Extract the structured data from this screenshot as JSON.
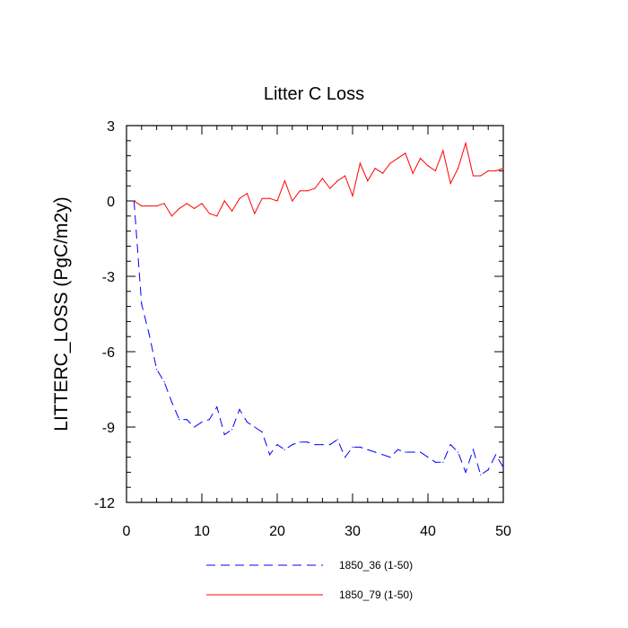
{
  "chart_data": {
    "type": "line",
    "title": "Litter C Loss",
    "xlabel": "",
    "ylabel": "LITTERC_LOSS  (PgC/m2y)",
    "xlim": [
      0,
      50
    ],
    "ylim": [
      -12,
      3
    ],
    "x_ticks": [
      0,
      10,
      20,
      30,
      40,
      50
    ],
    "y_ticks": [
      3,
      0,
      -3,
      -6,
      -9,
      -12
    ],
    "x_tick_labels": [
      "0",
      "10",
      "20",
      "30",
      "40",
      "50"
    ],
    "y_tick_labels": [
      "3",
      "0",
      "-3",
      "-6",
      "-9",
      "-12"
    ],
    "grid": false,
    "legend_position": "bottom",
    "series": [
      {
        "name": "1850_36 (1-50)",
        "color": "#0000ff",
        "style": "dashed",
        "x": [
          1,
          2,
          3,
          4,
          5,
          6,
          7,
          8,
          9,
          10,
          11,
          12,
          13,
          14,
          15,
          16,
          17,
          18,
          19,
          20,
          21,
          22,
          23,
          24,
          25,
          26,
          27,
          28,
          29,
          30,
          31,
          32,
          33,
          34,
          35,
          36,
          37,
          38,
          39,
          40,
          41,
          42,
          43,
          44,
          45,
          46,
          47,
          48,
          49,
          50
        ],
        "values": [
          0.0,
          -4.1,
          -5.3,
          -6.7,
          -7.2,
          -8.0,
          -8.7,
          -8.7,
          -9.0,
          -8.8,
          -8.7,
          -8.2,
          -9.3,
          -9.1,
          -8.3,
          -8.8,
          -9.0,
          -9.2,
          -10.1,
          -9.7,
          -9.9,
          -9.7,
          -9.6,
          -9.6,
          -9.7,
          -9.7,
          -9.7,
          -9.5,
          -10.2,
          -9.8,
          -9.8,
          -9.9,
          -10.0,
          -10.1,
          -10.2,
          -9.9,
          -10.0,
          -10.0,
          -10.0,
          -10.2,
          -10.4,
          -10.4,
          -9.7,
          -10.0,
          -10.8,
          -9.9,
          -10.9,
          -10.7,
          -10.1,
          -10.6
        ]
      },
      {
        "name": "1850_79 (1-50)",
        "color": "#ff0000",
        "style": "solid",
        "x": [
          1,
          2,
          3,
          4,
          5,
          6,
          7,
          8,
          9,
          10,
          11,
          12,
          13,
          14,
          15,
          16,
          17,
          18,
          19,
          20,
          21,
          22,
          23,
          24,
          25,
          26,
          27,
          28,
          29,
          30,
          31,
          32,
          33,
          34,
          35,
          36,
          37,
          38,
          39,
          40,
          41,
          42,
          43,
          44,
          45,
          46,
          47,
          48,
          49,
          50
        ],
        "values": [
          0.0,
          -0.2,
          -0.2,
          -0.2,
          -0.1,
          -0.6,
          -0.3,
          -0.1,
          -0.3,
          -0.1,
          -0.5,
          -0.6,
          0.0,
          -0.4,
          0.1,
          0.3,
          -0.5,
          0.1,
          0.1,
          0.0,
          0.8,
          0.0,
          0.4,
          0.4,
          0.5,
          0.9,
          0.5,
          0.8,
          1.0,
          0.2,
          1.5,
          0.8,
          1.3,
          1.1,
          1.5,
          1.7,
          1.9,
          1.1,
          1.7,
          1.4,
          1.2,
          2.0,
          0.7,
          1.3,
          2.3,
          1.0,
          1.0,
          1.2,
          1.2,
          1.3
        ]
      }
    ]
  }
}
